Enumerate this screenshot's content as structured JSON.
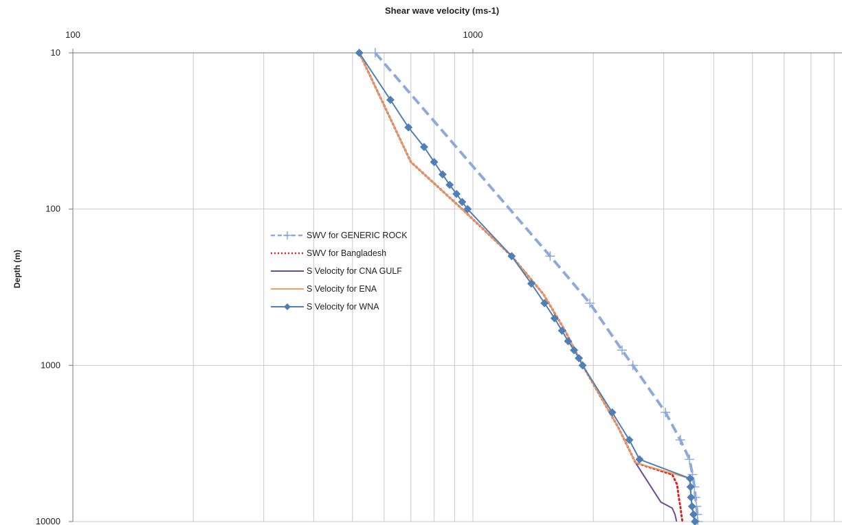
{
  "chart_data": {
    "type": "line",
    "title": "Shear wave velocity (ms-1)",
    "xlabel": "Shear wave velocity (ms-1)",
    "ylabel": "Depth (m)",
    "x_scale": "log",
    "y_scale": "log",
    "y_inverted": true,
    "x_axis_position": "top",
    "xlim": [
      100,
      10000
    ],
    "ylim": [
      10,
      10000
    ],
    "x_ticks": [
      "100",
      "1000"
    ],
    "y_ticks": [
      "10",
      "100",
      "1000",
      "10000"
    ],
    "grid": true,
    "legend_position": "center-left",
    "series": [
      {
        "name": "SWV for GENERIC  ROCK",
        "color": "#8eaadb",
        "style": "dashed",
        "marker": "plus",
        "points": [
          [
            570,
            10
          ],
          [
            1560,
            200
          ],
          [
            1960,
            400
          ],
          [
            2360,
            800
          ],
          [
            2510,
            1000
          ],
          [
            3030,
            2000
          ],
          [
            3300,
            3000
          ],
          [
            3480,
            4000
          ],
          [
            3540,
            5000
          ],
          [
            3580,
            6000
          ],
          [
            3600,
            7000
          ],
          [
            3620,
            8000
          ],
          [
            3640,
            9000
          ],
          [
            3650,
            10000
          ]
        ]
      },
      {
        "name": "SWV for Bangladesh",
        "color": "#e02020",
        "style": "dotted",
        "marker": "none",
        "points": [
          [
            520,
            10
          ],
          [
            700,
            50
          ],
          [
            940,
            100
          ],
          [
            1250,
            200
          ],
          [
            1500,
            350
          ],
          [
            1700,
            600
          ],
          [
            1880,
            1000
          ],
          [
            2310,
            2500
          ],
          [
            2550,
            4200
          ],
          [
            3150,
            5000
          ],
          [
            3240,
            5800
          ],
          [
            3270,
            7000
          ],
          [
            3300,
            8000
          ],
          [
            3320,
            9000
          ],
          [
            3340,
            10000
          ]
        ]
      },
      {
        "name": "S Velocity for CNA GULF",
        "color": "#6a4c93",
        "style": "solid",
        "marker": "none",
        "points": [
          [
            520,
            10
          ],
          [
            700,
            50
          ],
          [
            940,
            100
          ],
          [
            1250,
            200
          ],
          [
            1500,
            350
          ],
          [
            1700,
            600
          ],
          [
            1880,
            1000
          ],
          [
            2310,
            2500
          ],
          [
            2550,
            4200
          ],
          [
            2950,
            7500
          ],
          [
            3150,
            8200
          ],
          [
            3200,
            9000
          ],
          [
            3230,
            10000
          ]
        ]
      },
      {
        "name": "S Velocity for ENA",
        "color": "#e8a060",
        "style": "solid",
        "marker": "none",
        "points": [
          [
            520,
            10
          ],
          [
            700,
            50
          ],
          [
            940,
            100
          ],
          [
            1250,
            200
          ],
          [
            1500,
            350
          ],
          [
            1700,
            600
          ],
          [
            1880,
            1000
          ],
          [
            2310,
            2500
          ],
          [
            2550,
            4200
          ],
          [
            3480,
            5300
          ],
          [
            3500,
            6500
          ],
          [
            3520,
            7500
          ],
          [
            3540,
            8500
          ],
          [
            3560,
            9200
          ],
          [
            3580,
            10000
          ]
        ]
      },
      {
        "name": "S Velocity for WNA",
        "color": "#4f7fb5",
        "style": "solid",
        "marker": "diamond",
        "points": [
          [
            520,
            10
          ],
          [
            622,
            20
          ],
          [
            690,
            30
          ],
          [
            755,
            40
          ],
          [
            800,
            50
          ],
          [
            840,
            60
          ],
          [
            875,
            70
          ],
          [
            910,
            80
          ],
          [
            940,
            90
          ],
          [
            970,
            100
          ],
          [
            1250,
            200
          ],
          [
            1400,
            300
          ],
          [
            1510,
            400
          ],
          [
            1600,
            500
          ],
          [
            1670,
            600
          ],
          [
            1730,
            700
          ],
          [
            1790,
            800
          ],
          [
            1840,
            900
          ],
          [
            1880,
            1000
          ],
          [
            2230,
            2000
          ],
          [
            2460,
            3000
          ],
          [
            2610,
            4000
          ],
          [
            3490,
            5300
          ],
          [
            3500,
            6000
          ],
          [
            3510,
            7000
          ],
          [
            3530,
            8000
          ],
          [
            3560,
            9000
          ],
          [
            3590,
            10000
          ]
        ]
      }
    ]
  }
}
